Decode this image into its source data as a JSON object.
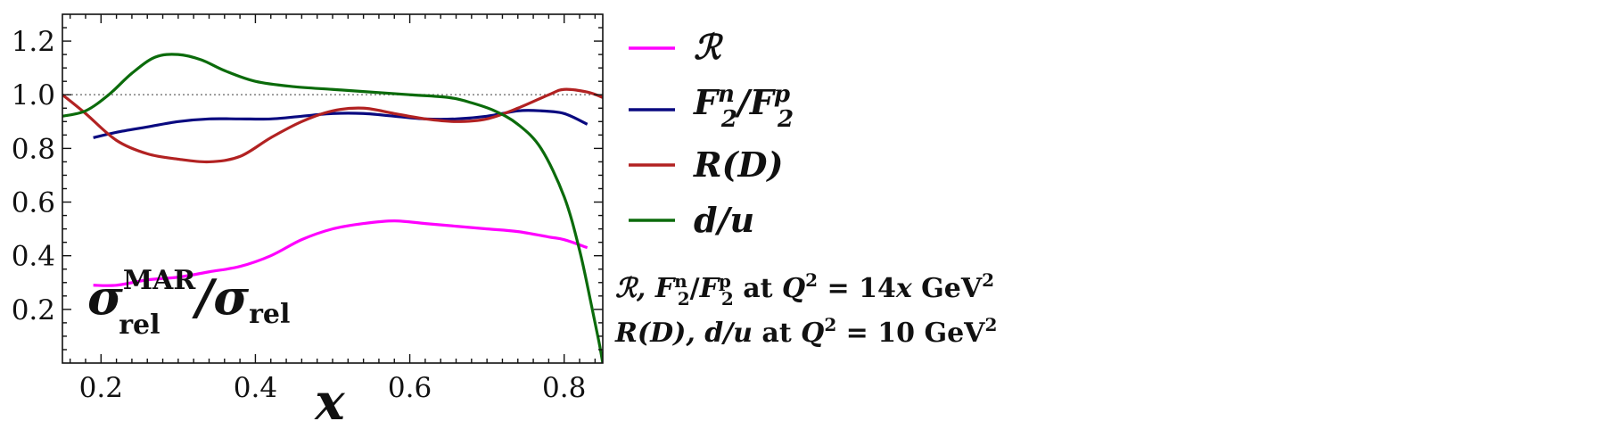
{
  "chart_data": {
    "type": "line",
    "xlabel": "x",
    "ylabel": "",
    "xlim": [
      0.15,
      0.85
    ],
    "ylim": [
      0.0,
      1.3
    ],
    "x_ticks": [
      "0.2",
      "0.4",
      "0.6",
      "0.8"
    ],
    "x_tick_values": [
      0.2,
      0.4,
      0.6,
      0.8
    ],
    "y_ticks": [
      "0.2",
      "0.4",
      "0.6",
      "0.8",
      "1.0",
      "1.2"
    ],
    "y_tick_values": [
      0.2,
      0.4,
      0.6,
      0.8,
      1.0,
      1.2
    ],
    "reference_line": {
      "y": 1.0,
      "style": "dotted",
      "color": "#888888"
    },
    "inner_label": {
      "main": "σ",
      "sup": "MAR",
      "sub": "rel",
      "slash": "/",
      "main2": "σ",
      "sub2": "rel"
    },
    "series": [
      {
        "name": "ℛ",
        "legend_html": [
          "ℛ"
        ],
        "color": "#ff00ff",
        "x": [
          0.19,
          0.22,
          0.26,
          0.3,
          0.34,
          0.38,
          0.42,
          0.46,
          0.5,
          0.54,
          0.58,
          0.62,
          0.66,
          0.7,
          0.74,
          0.78,
          0.8,
          0.83
        ],
        "y": [
          0.29,
          0.29,
          0.31,
          0.32,
          0.34,
          0.36,
          0.4,
          0.46,
          0.5,
          0.52,
          0.53,
          0.52,
          0.51,
          0.5,
          0.49,
          0.47,
          0.46,
          0.43
        ]
      },
      {
        "name": "F2n/F2p",
        "color": "#0a0a80",
        "x": [
          0.19,
          0.22,
          0.26,
          0.3,
          0.34,
          0.38,
          0.42,
          0.46,
          0.5,
          0.54,
          0.58,
          0.62,
          0.66,
          0.7,
          0.74,
          0.77,
          0.8,
          0.83
        ],
        "y": [
          0.84,
          0.86,
          0.88,
          0.9,
          0.91,
          0.91,
          0.91,
          0.92,
          0.93,
          0.93,
          0.92,
          0.91,
          0.91,
          0.92,
          0.94,
          0.94,
          0.93,
          0.89
        ]
      },
      {
        "name": "R(D)",
        "color": "#b22222",
        "x": [
          0.15,
          0.18,
          0.22,
          0.26,
          0.3,
          0.34,
          0.38,
          0.42,
          0.46,
          0.5,
          0.54,
          0.58,
          0.62,
          0.66,
          0.7,
          0.74,
          0.78,
          0.8,
          0.83,
          0.85
        ],
        "y": [
          1.0,
          0.93,
          0.83,
          0.78,
          0.76,
          0.75,
          0.77,
          0.84,
          0.9,
          0.94,
          0.95,
          0.93,
          0.91,
          0.9,
          0.91,
          0.95,
          1.0,
          1.02,
          1.01,
          0.99
        ]
      },
      {
        "name": "d/u",
        "color": "#0b6b0b",
        "x": [
          0.15,
          0.18,
          0.21,
          0.24,
          0.27,
          0.3,
          0.33,
          0.36,
          0.4,
          0.45,
          0.5,
          0.55,
          0.6,
          0.65,
          0.68,
          0.71,
          0.74,
          0.77,
          0.8,
          0.82,
          0.835,
          0.845,
          0.85
        ],
        "y": [
          0.92,
          0.94,
          1.0,
          1.08,
          1.14,
          1.15,
          1.13,
          1.09,
          1.05,
          1.03,
          1.02,
          1.01,
          1.0,
          0.99,
          0.97,
          0.94,
          0.89,
          0.8,
          0.62,
          0.42,
          0.22,
          0.08,
          0.0
        ]
      }
    ],
    "legend": [
      {
        "label": "ℛ",
        "series": 0
      },
      {
        "label": "F2n/F2p",
        "series": 1
      },
      {
        "label": "R(D)",
        "series": 2
      },
      {
        "label": "d/u",
        "series": 3
      }
    ],
    "notes": [
      "ℛ, F2n/F2p at Q2 = 14x GeV2",
      "R(D), d/u at Q2 = 10 GeV2"
    ]
  },
  "text": {
    "legend_R": "ℛ",
    "legend_F_num": "F",
    "legend_F_num_sup": "n",
    "legend_F_num_sub": "2",
    "legend_F_slash": "/",
    "legend_F_den": "F",
    "legend_F_den_sup": "p",
    "legend_F_den_sub": "2",
    "legend_RD": "R(D)",
    "legend_du": "d/u",
    "note1_a": "ℛ, ",
    "note1_b": "F",
    "note1_b_sup": "n",
    "note1_b_sub": "2",
    "note1_c": "/",
    "note1_d": "F",
    "note1_d_sup": "p",
    "note1_d_sub": "2",
    "note1_e": " at ",
    "note1_f": "Q",
    "note1_f_sup": "2",
    "note1_g": " = 14",
    "note1_h": "x",
    "note1_i": " GeV",
    "note1_i_sup": "2",
    "note2_a": "R(D), d/u",
    "note2_b": " at ",
    "note2_c": "Q",
    "note2_c_sup": "2",
    "note2_d": " = 10 GeV",
    "note2_d_sup": "2"
  }
}
